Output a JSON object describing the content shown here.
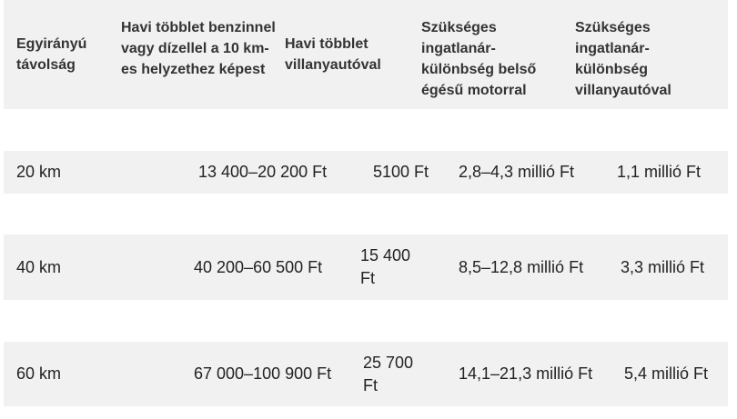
{
  "table": {
    "header": [
      "Egyirányú távolság",
      "Havi többlet benzinnel vagy dízellel a 10 km-es helyzethez képest",
      "Havi többlet villanyautóval",
      "Szükséges ingatlanár-különbség belső égésű motorral",
      "Szükséges ingatlanár-különbség villanyautóval"
    ],
    "rows": [
      [
        "20 km",
        "13 400–20 200 Ft",
        "5100 Ft",
        "2,8–4,3 millió Ft",
        "1,1 millió Ft"
      ],
      [
        "40 km",
        "40 200–60 500 Ft",
        "15 400 Ft",
        "8,5–12,8 millió Ft",
        "3,3 millió Ft"
      ],
      [
        "60 km",
        "67 000–100 900 Ft",
        "25 700 Ft",
        "14,1–21,3 millió Ft",
        "5,4 millió Ft"
      ]
    ]
  }
}
